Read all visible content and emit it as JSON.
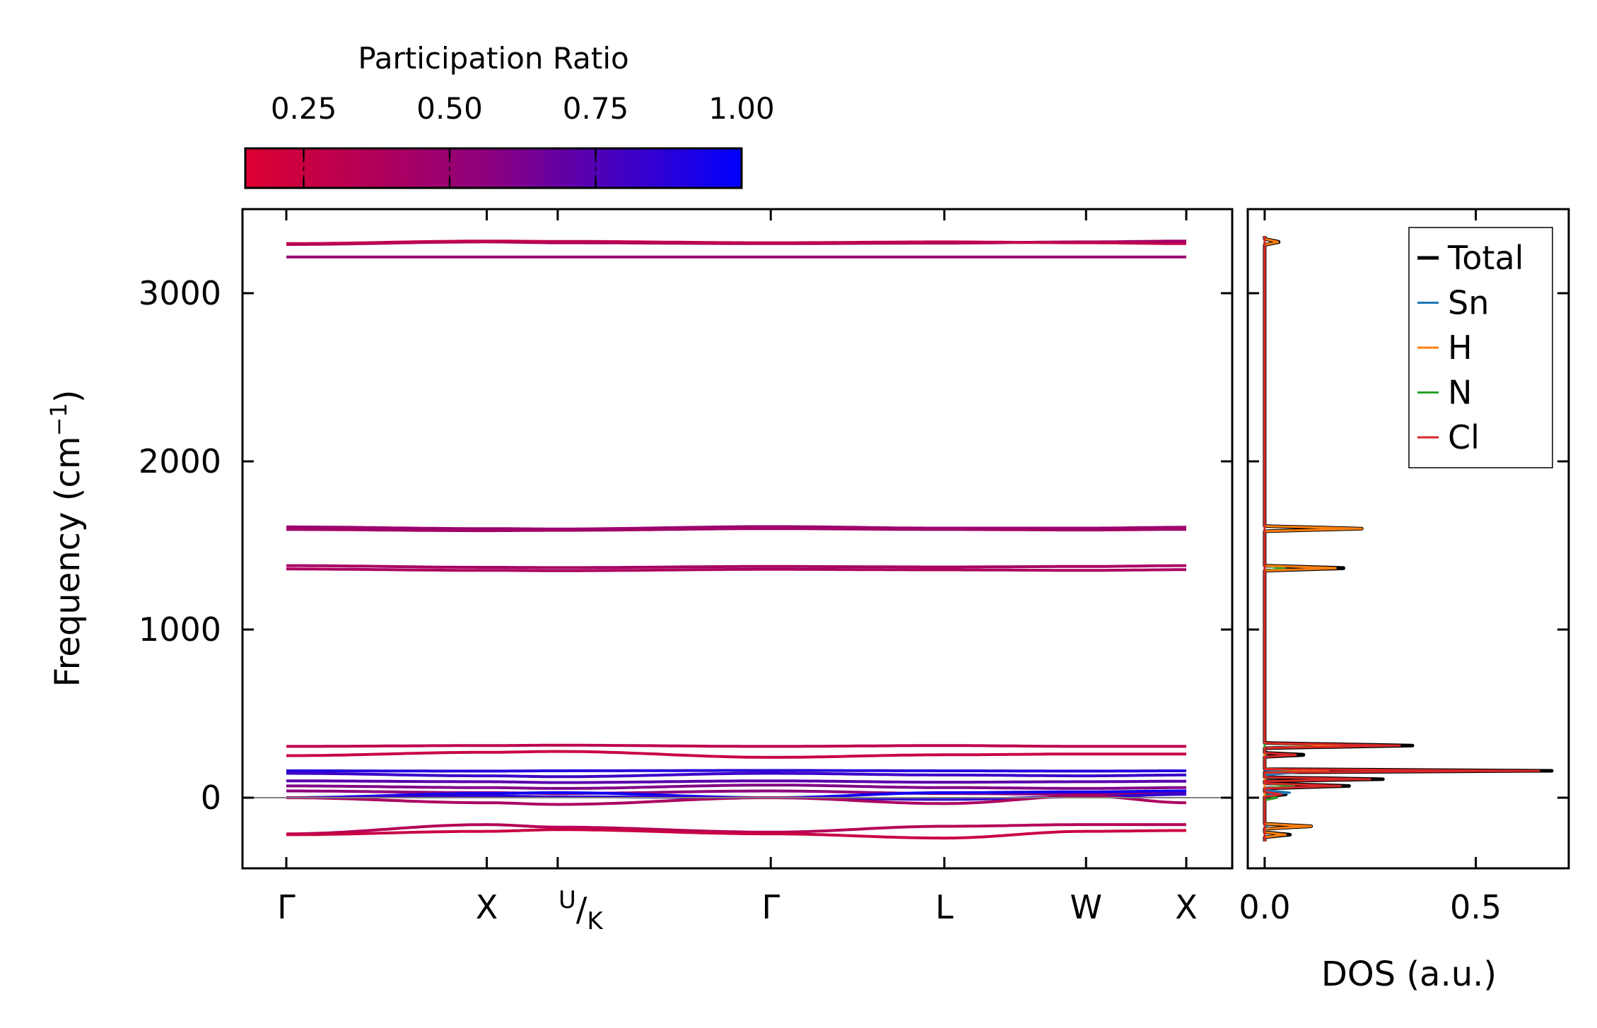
{
  "colors": {
    "cmap_low": "#dc0030",
    "cmap_mid": "#8a0080",
    "cmap_high": "#0000ff",
    "total": "#000000",
    "Sn": "#1f77b4",
    "H": "#ff7f0e",
    "N": "#2ca02c",
    "Cl": "#d62728",
    "zero_line": "#808080"
  },
  "chart_data": [
    {
      "type": "line",
      "name": "phonon band structure",
      "ylabel_main": "Frequency (cm",
      "ylabel_sup": "−1",
      "ylabel_end": ")",
      "ylim": [
        -420,
        3500
      ],
      "yticks": [
        0,
        1000,
        2000,
        3000
      ],
      "ytick_labels": [
        "0",
        "1000",
        "2000",
        "3000"
      ],
      "kpoints": [
        0,
        1,
        1.354,
        2.417,
        3.283,
        3.99,
        4.49
      ],
      "kpoint_labels": [
        "Γ",
        "X",
        "U/K",
        "Γ",
        "L",
        "W",
        "X"
      ],
      "kpoint_labels_display": [
        "Γ",
        "X",
        "",
        "Γ",
        "L",
        "W",
        "X"
      ],
      "uk_label": {
        "sup": "U",
        "slash": "/",
        "sub": "K"
      },
      "bands": [
        {
          "values": [
            3290,
            3305,
            3300,
            3295,
            3298,
            3305,
            3310
          ],
          "pr": 0.45
        },
        {
          "values": [
            3295,
            3310,
            3308,
            3300,
            3305,
            3300,
            3295
          ],
          "pr": 0.3
        },
        {
          "values": [
            3215,
            3215,
            3215,
            3215,
            3215,
            3215,
            3215
          ],
          "pr": 0.48
        },
        {
          "values": [
            1610,
            1600,
            1598,
            1612,
            1603,
            1603,
            1608
          ],
          "pr": 0.48
        },
        {
          "values": [
            1595,
            1588,
            1590,
            1600,
            1595,
            1592,
            1596
          ],
          "pr": 0.45
        },
        {
          "values": [
            1380,
            1370,
            1368,
            1375,
            1372,
            1375,
            1380
          ],
          "pr": 0.42
        },
        {
          "values": [
            1360,
            1352,
            1350,
            1358,
            1355,
            1352,
            1356
          ],
          "pr": 0.4
        },
        {
          "values": [
            305,
            310,
            312,
            305,
            310,
            305,
            305
          ],
          "pr": 0.3
        },
        {
          "values": [
            250,
            270,
            275,
            240,
            255,
            260,
            260
          ],
          "pr": 0.25
        },
        {
          "values": [
            160,
            158,
            160,
            162,
            160,
            158,
            160
          ],
          "pr": 0.88
        },
        {
          "values": [
            145,
            130,
            125,
            145,
            135,
            130,
            135
          ],
          "pr": 0.82
        },
        {
          "values": [
            100,
            95,
            90,
            100,
            92,
            95,
            98
          ],
          "pr": 0.72
        },
        {
          "values": [
            70,
            60,
            55,
            75,
            60,
            55,
            60
          ],
          "pr": 0.6
        },
        {
          "values": [
            40,
            30,
            25,
            40,
            25,
            20,
            30
          ],
          "pr": 0.55
        },
        {
          "values": [
            0,
            25,
            30,
            0,
            30,
            35,
            40
          ],
          "pr": 0.95
        },
        {
          "values": [
            0,
            10,
            5,
            0,
            -10,
            5,
            20
          ],
          "pr": 0.85
        },
        {
          "values": [
            0,
            -30,
            -40,
            0,
            -35,
            10,
            -30
          ],
          "pr": 0.4
        },
        {
          "values": [
            -215,
            -160,
            -175,
            -205,
            -170,
            -160,
            -160
          ],
          "pr": 0.35
        },
        {
          "values": [
            -220,
            -200,
            -190,
            -215,
            -240,
            -200,
            -195
          ],
          "pr": 0.25
        }
      ]
    },
    {
      "type": "line",
      "name": "density of states",
      "xlabel": "DOS (a.u.)",
      "xlim": [
        -0.04,
        0.72
      ],
      "xticks": [
        0.0,
        0.5
      ],
      "xtick_labels": [
        "0.0",
        "0.5"
      ],
      "ylim": [
        -420,
        3500
      ],
      "legend_position": "top-right",
      "series": [
        {
          "name": "Total",
          "peaks": [
            [
              3305,
              0.035,
              18
            ],
            [
              1600,
              0.23,
              15
            ],
            [
              1365,
              0.2,
              15
            ],
            [
              310,
              0.35,
              15
            ],
            [
              255,
              0.1,
              12
            ],
            [
              160,
              0.68,
              10
            ],
            [
              110,
              0.28,
              12
            ],
            [
              70,
              0.2,
              15
            ],
            [
              20,
              0.05,
              15
            ],
            [
              -170,
              0.11,
              15
            ],
            [
              -220,
              0.06,
              15
            ]
          ]
        },
        {
          "name": "Sn",
          "peaks": [
            [
              150,
              0.08,
              15
            ],
            [
              30,
              0.06,
              15
            ],
            [
              -180,
              0.01,
              15
            ]
          ]
        },
        {
          "name": "H",
          "peaks": [
            [
              3305,
              0.033,
              18
            ],
            [
              1600,
              0.23,
              15
            ],
            [
              1365,
              0.18,
              15
            ],
            [
              310,
              0.2,
              15
            ],
            [
              160,
              0.15,
              12
            ],
            [
              -170,
              0.11,
              15
            ],
            [
              -220,
              0.05,
              15
            ]
          ]
        },
        {
          "name": "N",
          "peaks": [
            [
              1365,
              0.05,
              15
            ],
            [
              160,
              0.1,
              12
            ],
            [
              70,
              0.07,
              15
            ],
            [
              0,
              0.03,
              15
            ]
          ]
        },
        {
          "name": "Cl",
          "peaks": [
            [
              310,
              0.32,
              15
            ],
            [
              255,
              0.08,
              12
            ],
            [
              160,
              0.65,
              10
            ],
            [
              110,
              0.25,
              12
            ],
            [
              70,
              0.18,
              15
            ],
            [
              20,
              0.04,
              15
            ]
          ]
        }
      ]
    },
    {
      "type": "heatmap",
      "name": "colorbar",
      "title": "Participation Ratio",
      "range": [
        0.15,
        1.0
      ],
      "ticks": [
        0.25,
        0.5,
        0.75,
        1.0
      ],
      "tick_labels": [
        "0.25",
        "0.50",
        "0.75",
        "1.00"
      ]
    }
  ]
}
